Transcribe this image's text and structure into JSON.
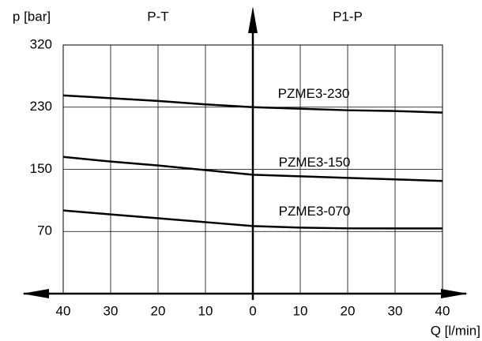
{
  "chart_data": {
    "type": "line",
    "annotations": {
      "left_region": "P-T",
      "right_region": "P1-P"
    },
    "y_label": "p [bar]",
    "x_label": "Q [l/min]",
    "x": [
      -40,
      -30,
      -20,
      -10,
      0,
      10,
      20,
      30,
      40
    ],
    "series": [
      {
        "name": "PZME3-230",
        "color": "#000000",
        "values": [
          247,
          243,
          239,
          234,
          230,
          228,
          226,
          225,
          223
        ]
      },
      {
        "name": "PZME3-150",
        "color": "#000000",
        "values": [
          166,
          160,
          155,
          149,
          143,
          141,
          139,
          137,
          135
        ]
      },
      {
        "name": "PZME3-070",
        "color": "#000000",
        "values": [
          97,
          92,
          87,
          82,
          77,
          75,
          74,
          74,
          74
        ]
      }
    ],
    "xlim": [
      -40,
      40
    ],
    "xticks": [
      {
        "value": -40,
        "label": "40"
      },
      {
        "value": -30,
        "label": "30"
      },
      {
        "value": -20,
        "label": "20"
      },
      {
        "value": -10,
        "label": "10"
      },
      0,
      10,
      20,
      30,
      40
    ],
    "ylim": [
      0,
      320
    ],
    "yticks": [
      70,
      150,
      230,
      320
    ],
    "grid": true
  }
}
